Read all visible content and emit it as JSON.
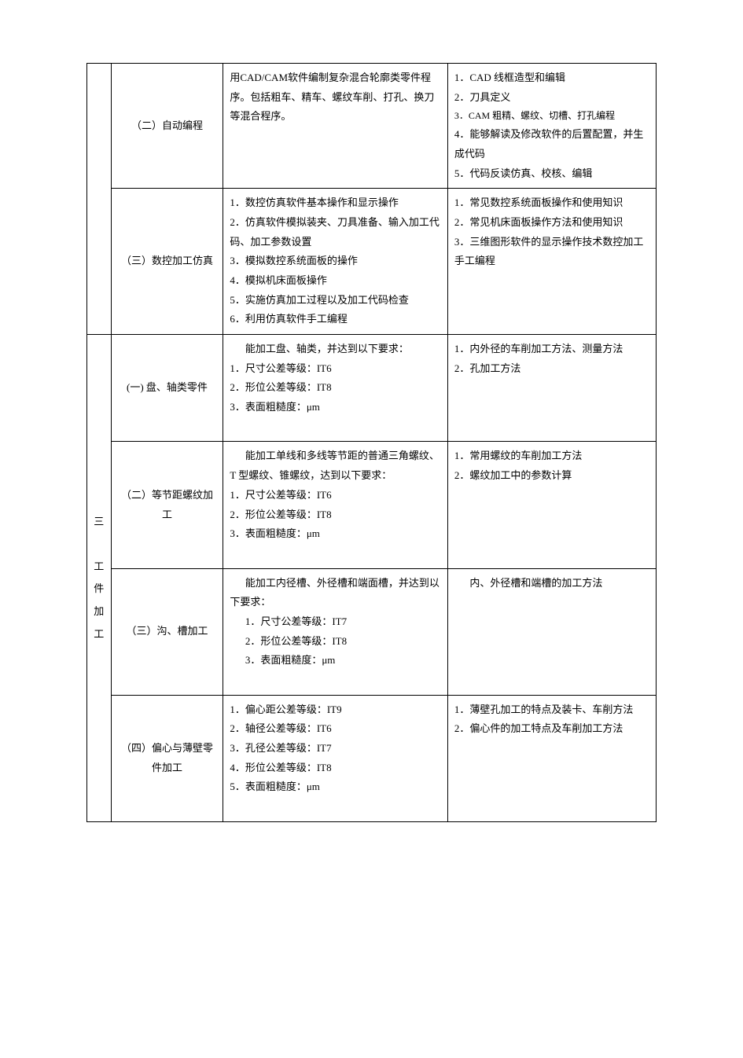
{
  "colors": {
    "border": "#000000",
    "text": "#000000",
    "bg": "#ffffff"
  },
  "font": {
    "family": "SimSun",
    "size_pt": 10,
    "line_height": 1.9
  },
  "section_header": "三 工件加工",
  "rows": [
    {
      "col2": "（二）自动编程",
      "col3": "用CAD/CAM软件编制复杂混合轮廓类零件程序。包括粗车、精车、螺纹车削、打孔、换刀等混合程序。",
      "col4_lines": [
        "1．CAD 线框造型和编辑",
        "2．刀具定义",
        "3．CAM 粗精、螺纹、切槽、打孔编程",
        "4．能够解读及修改软件的后置配置，并生成代码",
        "5．代码反读仿真、校核、编辑"
      ]
    },
    {
      "col2": "（三）数控加工仿真",
      "col3_lines": [
        "1．数控仿真软件基本操作和显示操作",
        "2．仿真软件模拟装夹、刀具准备、输入加工代码、加工参数设置",
        "3．模拟数控系统面板的操作",
        "4．模拟机床面板操作",
        "5．实施仿真加工过程以及加工代码检查",
        "6．利用仿真软件手工编程"
      ],
      "col4_lines": [
        "1．常见数控系统面板操作和使用知识",
        "2．常见机床面板操作方法和使用知识",
        "3．三维图形软件的显示操作技术数控加工手工编程"
      ]
    },
    {
      "col2": "(一) 盘、轴类零件",
      "col3_intro": "能加工盘、轴类，并达到以下要求：",
      "col3_items": [
        "1．尺寸公差等级：IT6",
        "2．形位公差等级：IT8",
        "3．表面粗糙度：μm"
      ],
      "col4_lines": [
        "1．内外径的车削加工方法、测量方法",
        "2．孔加工方法"
      ]
    },
    {
      "col2": "（二）等节距螺纹加工",
      "col3_intro": "能加工单线和多线等节距的普通三角螺纹、T 型螺纹、锥螺纹，达到以下要求：",
      "col3_items": [
        "1．尺寸公差等级：IT6",
        "2．形位公差等级：IT8",
        "3．表面粗糙度：μm"
      ],
      "col4_lines": [
        "1．常用螺纹的车削加工方法",
        "2．螺纹加工中的参数计算"
      ]
    },
    {
      "col2": "（三）沟、槽加工",
      "col3_intro": "能加工内径槽、外径槽和端面槽，并达到以下要求：",
      "col3_items": [
        "1．尺寸公差等级：IT7",
        "2．形位公差等级：IT8",
        "3．表面粗糙度：μm"
      ],
      "col4_intro": "内、外径槽和端槽的加工方法"
    },
    {
      "col2": "（四）偏心与薄壁零件加工",
      "col3_lines": [
        "1．偏心距公差等级：IT9",
        "2．轴径公差等级：IT6",
        "3．孔径公差等级：IT7",
        "4．形位公差等级：IT8",
        "5．表面粗糙度：μm"
      ],
      "col4_lines": [
        "1．薄壁孔加工的特点及装卡、车削方法",
        "2．偏心件的加工特点及车削加工方法"
      ]
    }
  ]
}
